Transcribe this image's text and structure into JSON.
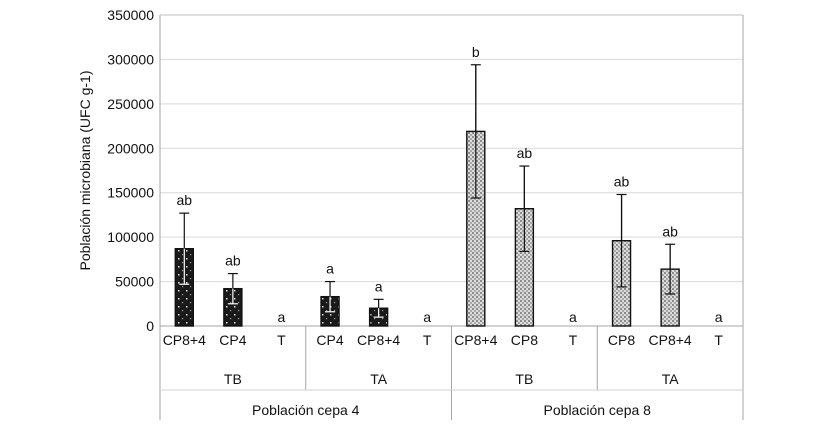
{
  "chart_data": {
    "type": "bar",
    "ylabel": "Población microbiana (UFC g-1)",
    "ylim": [
      0,
      350000
    ],
    "yticks": [
      0,
      50000,
      100000,
      150000,
      200000,
      250000,
      300000,
      350000
    ],
    "grid": true,
    "groups": [
      {
        "label": "Población cepa 4",
        "subgroups": [
          {
            "label": "TB",
            "bars": [
              {
                "category": "CP8+4",
                "value": 87000,
                "error": 40000,
                "significance": "ab"
              },
              {
                "category": "CP4",
                "value": 42000,
                "error": 17000,
                "significance": "ab"
              },
              {
                "category": "T",
                "value": 0,
                "error": 0,
                "significance": "a"
              }
            ]
          },
          {
            "label": "TA",
            "bars": [
              {
                "category": "CP4",
                "value": 33000,
                "error": 17000,
                "significance": "a"
              },
              {
                "category": "CP8+4",
                "value": 20000,
                "error": 10000,
                "significance": "a"
              },
              {
                "category": "T",
                "value": 0,
                "error": 0,
                "significance": "a"
              }
            ]
          }
        ]
      },
      {
        "label": "Población cepa 8",
        "subgroups": [
          {
            "label": "TB",
            "bars": [
              {
                "category": "CP8+4",
                "value": 219000,
                "error": 75000,
                "significance": "b"
              },
              {
                "category": "CP8",
                "value": 132000,
                "error": 48000,
                "significance": "ab"
              },
              {
                "category": "T",
                "value": 0,
                "error": 0,
                "significance": "a"
              }
            ]
          },
          {
            "label": "TA",
            "bars": [
              {
                "category": "CP8",
                "value": 96000,
                "error": 52000,
                "significance": "ab"
              },
              {
                "category": "CP8+4",
                "value": 64000,
                "error": 28000,
                "significance": "ab"
              },
              {
                "category": "T",
                "value": 0,
                "error": 0,
                "significance": "a"
              }
            ]
          }
        ]
      }
    ]
  }
}
